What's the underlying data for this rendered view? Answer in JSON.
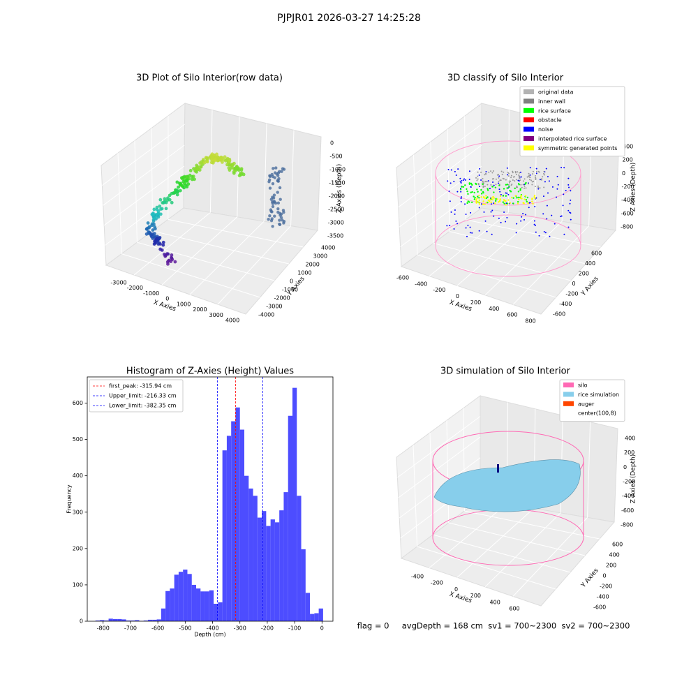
{
  "title": "PJPJR01 2026-03-27 14:25:28",
  "status_text": "flag = 0     avgDepth = 168 cm  sv1 = 700~2300  sv2 = 700~2300",
  "chart_data": [
    {
      "type": "scatter3d",
      "title": "3D Plot of Silo Interior(row data)",
      "x_label": "X Axies",
      "y_label": "Y Axies",
      "z_label": "Z Axies (Depth)",
      "xticks": [
        -3000,
        -2000,
        -1000,
        0,
        1000,
        2000,
        3000,
        4000
      ],
      "yticks": [
        -4000,
        -3000,
        -2000,
        -1000,
        0,
        1000,
        2000,
        3000,
        4000
      ],
      "zticks": [
        0,
        -500,
        -1000,
        -1500,
        -2000,
        -2500,
        -3000,
        -3500
      ]
    },
    {
      "type": "scatter3d",
      "title": "3D classify of Silo Interior",
      "x_label": "X Axies",
      "y_label": "Y Axies",
      "z_label": "Z Axies (Depth)",
      "xticks": [
        -600,
        -400,
        -200,
        0,
        200,
        400,
        600,
        800
      ],
      "yticks": [
        -600,
        -400,
        -200,
        0,
        200,
        400,
        600
      ],
      "zticks": [
        400,
        200,
        0,
        -200,
        -400,
        -600,
        -800
      ],
      "legend": [
        {
          "name": "original data",
          "color": "#b3b3b3"
        },
        {
          "name": "inner wall",
          "color": "#808080"
        },
        {
          "name": "rice surface",
          "color": "#00ff00"
        },
        {
          "name": "obstacle",
          "color": "#ff0000"
        },
        {
          "name": "noise",
          "color": "#0000ff"
        },
        {
          "name": "interpolated rice surface",
          "color": "#800080"
        },
        {
          "name": "symmetric generated points",
          "color": "#ffff00"
        }
      ]
    },
    {
      "type": "histogram",
      "title": "Histogram of Z-Axies (Height) Values",
      "x_label": "Depth (cm)",
      "y_label": "Frequency",
      "color": "#4d4dff",
      "bins": [
        -828,
        -812,
        -796,
        -780,
        -764,
        -748,
        -732,
        -716,
        -700,
        -684,
        -668,
        -652,
        -636,
        -620,
        -604,
        -588,
        -572,
        -556,
        -540,
        -524,
        -508,
        -492,
        -476,
        -460,
        -444,
        -428,
        -412,
        -396,
        -380,
        -364,
        -348,
        -332,
        -316,
        -300,
        -284,
        -268,
        -252,
        -236,
        -220,
        -204,
        -188,
        -172,
        -156,
        -140,
        -124,
        -108,
        -92,
        -76,
        -60,
        -44,
        -28,
        -12,
        4
      ],
      "values": [
        2,
        3,
        2,
        7,
        6,
        6,
        5,
        2,
        2,
        3,
        1,
        2,
        4,
        4,
        5,
        35,
        83,
        90,
        128,
        136,
        142,
        130,
        100,
        90,
        82,
        82,
        85,
        48,
        52,
        470,
        510,
        550,
        588,
        527,
        400,
        365,
        345,
        285,
        303,
        262,
        280,
        272,
        305,
        355,
        565,
        642,
        345,
        198,
        78,
        20,
        22,
        35
      ],
      "xlim": [
        -858,
        40
      ],
      "ylim": [
        0,
        672
      ],
      "xticks": [
        -800,
        -700,
        -600,
        -500,
        -400,
        -300,
        -200,
        -100,
        0
      ],
      "yticks": [
        0,
        100,
        200,
        300,
        400,
        500,
        600
      ],
      "vlines": [
        {
          "name": "first_peak: -315.94 cm",
          "value": -315.94,
          "color": "#ff0000"
        },
        {
          "name": "Upper_limit: -216.33 cm",
          "value": -216.33,
          "color": "#0000ff"
        },
        {
          "name": "Lower_limit: -382.35 cm",
          "value": -382.35,
          "color": "#0000ff"
        }
      ],
      "legend_position": "upper left"
    },
    {
      "type": "surface3d",
      "title": "3D simulation of Silo Interior",
      "x_label": "X Axies",
      "y_label": "Y Axies",
      "z_label": "Z Axies (Depth)",
      "xticks": [
        -400,
        -200,
        0,
        200,
        400,
        600
      ],
      "yticks": [
        -600,
        -400,
        -200,
        0,
        200,
        400,
        600
      ],
      "zticks": [
        400,
        200,
        0,
        -200,
        -400,
        -600,
        -800
      ],
      "legend": [
        {
          "name": "silo",
          "color": "#ff69b4"
        },
        {
          "name": "rice simulation",
          "color": "#87ceeb"
        },
        {
          "name": "auger",
          "color": "#ff4500"
        },
        {
          "name": "center(100,8)",
          "color": "#ffffff"
        }
      ]
    }
  ]
}
